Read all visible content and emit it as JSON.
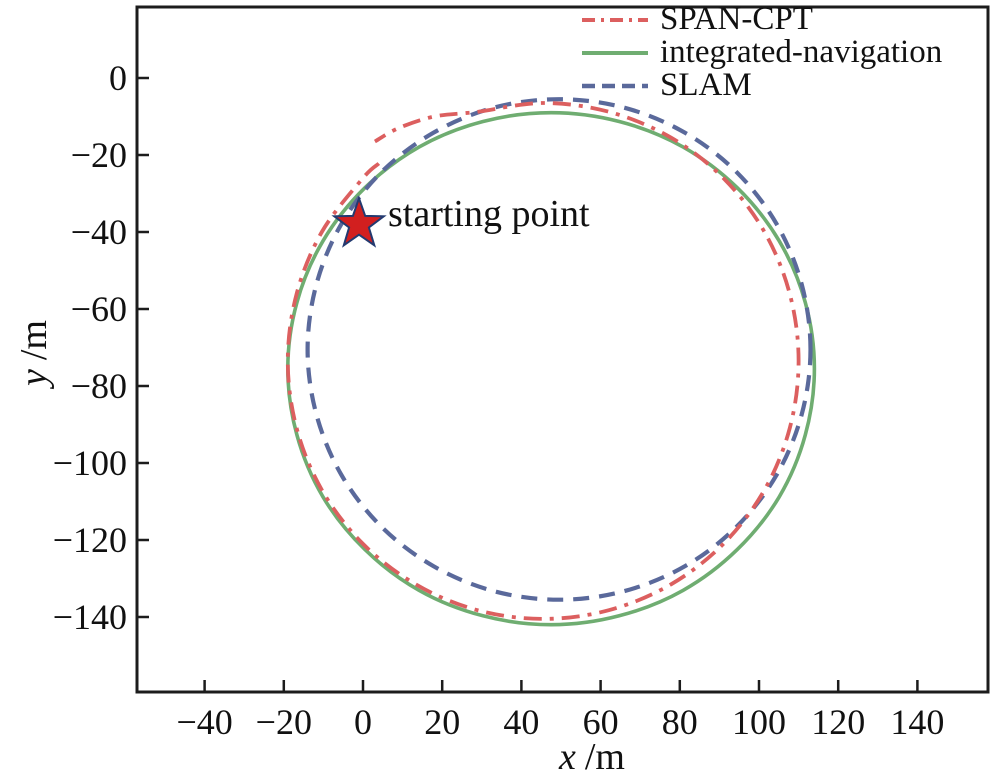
{
  "figure": {
    "background": "#ffffff",
    "axis_color": "#1c1c1c",
    "text_color": "#111111"
  },
  "chart_data": {
    "type": "line",
    "title": "",
    "xlabel": "x /m",
    "xlabel_var": "x",
    "xlabel_unit": "/m",
    "ylabel": "y /m",
    "ylabel_var": "y",
    "ylabel_unit": "/m",
    "x_ticks": [
      -40,
      -20,
      0,
      20,
      40,
      60,
      80,
      100,
      120,
      140
    ],
    "y_ticks": [
      0,
      -20,
      -40,
      -60,
      -80,
      -100,
      -120,
      -140
    ],
    "xlim": [
      -57,
      158
    ],
    "ylim": [
      -160,
      18
    ],
    "grid": false,
    "legend_position": "top-right-inside",
    "series": [
      {
        "name": "SPAN-CPT",
        "color": "#dc5f5f",
        "style": "dash-dot",
        "closed": false,
        "points": [
          [
            4.0,
            -22.2
          ],
          [
            -0.1,
            -26.1
          ],
          [
            -10.4,
            -40.0
          ],
          [
            -16.8,
            -56.2
          ],
          [
            -19.0,
            -73.5
          ],
          [
            -16.8,
            -90.8
          ],
          [
            -10.4,
            -107.0
          ],
          [
            -0.1,
            -120.9
          ],
          [
            13.3,
            -131.5
          ],
          [
            28.8,
            -138.2
          ],
          [
            45.5,
            -140.5
          ],
          [
            62.2,
            -138.2
          ],
          [
            77.8,
            -131.5
          ],
          [
            91.1,
            -120.9
          ],
          [
            101.4,
            -107.0
          ],
          [
            107.8,
            -90.8
          ],
          [
            110.0,
            -73.5
          ],
          [
            107.8,
            -56.2
          ],
          [
            101.4,
            -40.0
          ],
          [
            91.1,
            -26.1
          ],
          [
            77.8,
            -15.5
          ],
          [
            62.2,
            -8.8
          ],
          [
            45.5,
            -6.5
          ],
          [
            28.8,
            -8.8
          ],
          [
            18.0,
            -10.0
          ],
          [
            9.0,
            -13.0
          ],
          [
            3.0,
            -16.5
          ]
        ]
      },
      {
        "name": "integrated-navigation",
        "color": "#6fad71",
        "style": "solid",
        "closed": true,
        "points": [
          [
            114.0,
            -75.5
          ],
          [
            111.7,
            -58.3
          ],
          [
            105.1,
            -42.3
          ],
          [
            94.5,
            -28.5
          ],
          [
            80.8,
            -17.9
          ],
          [
            64.7,
            -11.3
          ],
          [
            47.5,
            -9.0
          ],
          [
            30.3,
            -11.3
          ],
          [
            14.2,
            -17.9
          ],
          [
            0.5,
            -28.5
          ],
          [
            -10.1,
            -42.3
          ],
          [
            -16.7,
            -58.3
          ],
          [
            -19.0,
            -75.5
          ],
          [
            -16.7,
            -92.7
          ],
          [
            -10.1,
            -108.8
          ],
          [
            0.5,
            -122.5
          ],
          [
            14.2,
            -133.1
          ],
          [
            30.3,
            -139.7
          ],
          [
            47.5,
            -142.0
          ],
          [
            64.7,
            -139.7
          ],
          [
            80.8,
            -133.1
          ],
          [
            94.5,
            -122.5
          ],
          [
            105.1,
            -108.8
          ],
          [
            111.7,
            -92.7
          ]
        ]
      },
      {
        "name": "SLAM",
        "color": "#5a699b",
        "style": "dashed",
        "closed": true,
        "points": [
          [
            113.0,
            -70.5
          ],
          [
            110.8,
            -53.7
          ],
          [
            104.5,
            -38.0
          ],
          [
            94.4,
            -24.5
          ],
          [
            81.3,
            -14.2
          ],
          [
            65.9,
            -7.7
          ],
          [
            49.5,
            -5.5
          ],
          [
            33.1,
            -7.7
          ],
          [
            17.8,
            -14.2
          ],
          [
            4.6,
            -24.5
          ],
          [
            -5.5,
            -38.0
          ],
          [
            -11.8,
            -53.7
          ],
          [
            -14.0,
            -70.5
          ],
          [
            -11.8,
            -87.3
          ],
          [
            -5.5,
            -103.0
          ],
          [
            4.6,
            -116.5
          ],
          [
            17.8,
            -126.8
          ],
          [
            33.1,
            -133.3
          ],
          [
            49.5,
            -135.5
          ],
          [
            65.9,
            -133.3
          ],
          [
            81.3,
            -126.8
          ],
          [
            94.4,
            -116.5
          ],
          [
            104.5,
            -103.0
          ],
          [
            110.8,
            -87.3
          ]
        ]
      }
    ],
    "annotations": [
      {
        "text": "starting point",
        "x": 5,
        "y": -35
      }
    ],
    "start_marker": {
      "shape": "star",
      "x": -1,
      "y": -38,
      "fill": "#d21f1f",
      "stroke": "#233a70"
    }
  }
}
